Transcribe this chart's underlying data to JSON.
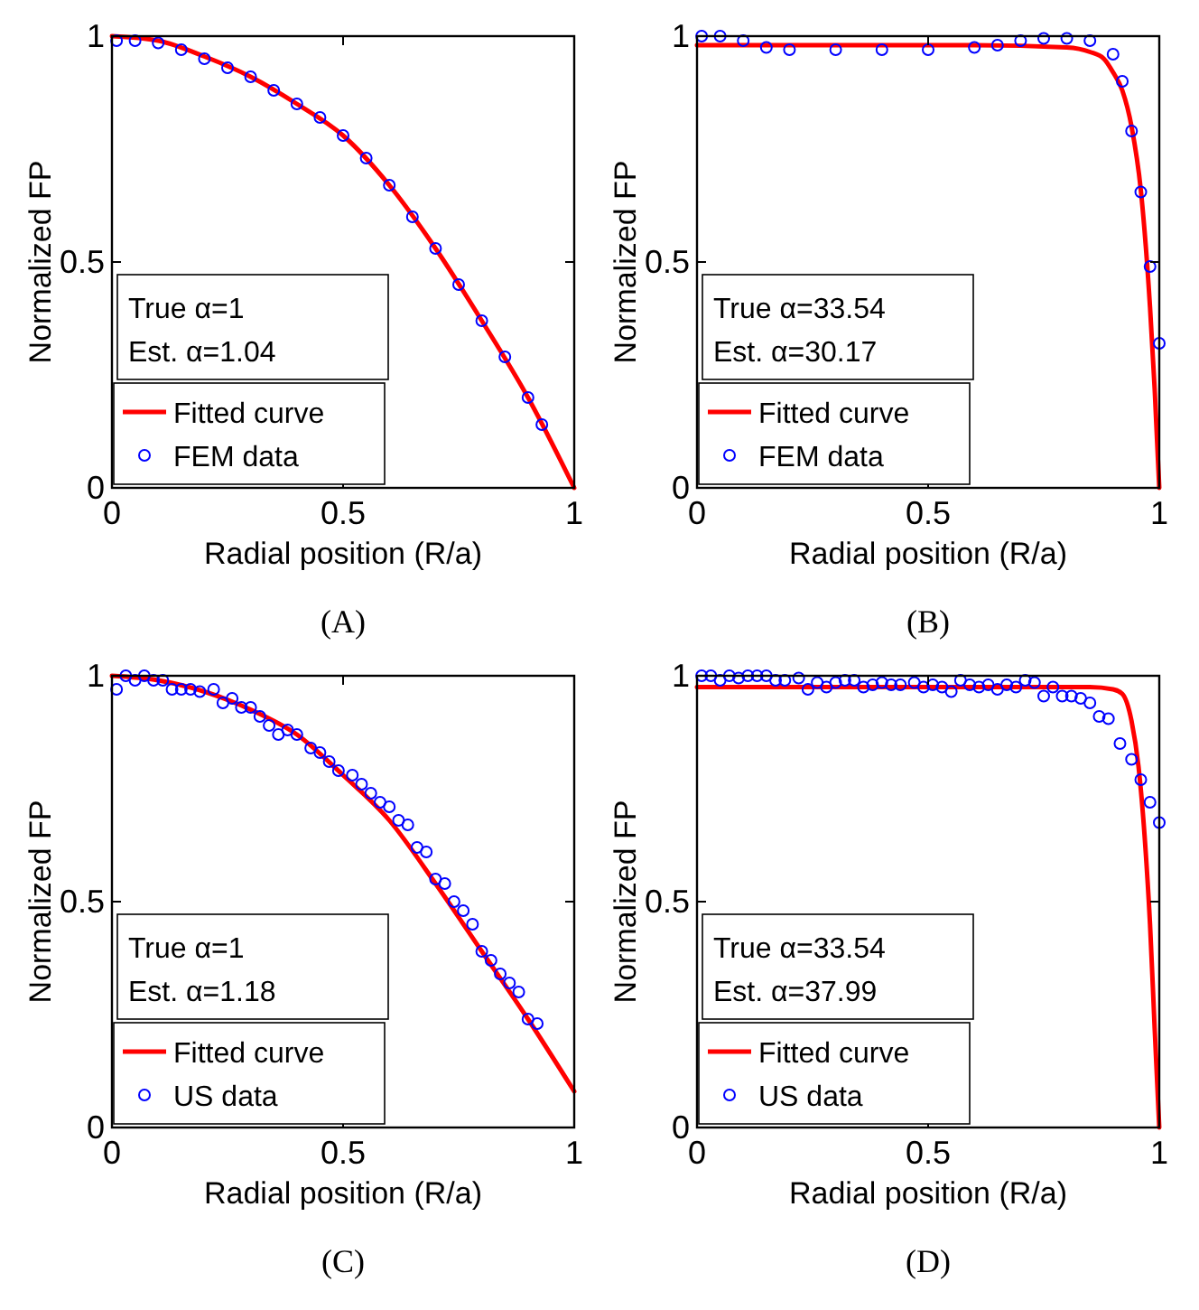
{
  "chart_data": [
    {
      "type": "line",
      "title": "(A)",
      "xlabel": "Radial position (R/a)",
      "ylabel": "Normalized FP",
      "xlim": [
        0,
        1
      ],
      "ylim": [
        0,
        1
      ],
      "xticks": [
        0,
        0.5,
        1
      ],
      "yticks": [
        0,
        0.5,
        1
      ],
      "legend": "bottom left",
      "annotations": [
        "True α=1",
        "Est. α=1.04"
      ],
      "series": [
        {
          "name": "Fitted curve",
          "type": "line",
          "color": "#ff0000",
          "x": [
            0,
            0.1,
            0.2,
            0.3,
            0.4,
            0.5,
            0.6,
            0.7,
            0.8,
            0.9,
            1
          ],
          "values": [
            1,
            0.99,
            0.955,
            0.91,
            0.85,
            0.78,
            0.67,
            0.53,
            0.37,
            0.2,
            0
          ]
        },
        {
          "name": "FEM data",
          "type": "scatter",
          "marker": "circle",
          "color": "#0000ff",
          "x": [
            0.01,
            0.05,
            0.1,
            0.15,
            0.2,
            0.25,
            0.3,
            0.35,
            0.4,
            0.45,
            0.5,
            0.55,
            0.6,
            0.65,
            0.7,
            0.75,
            0.8,
            0.85,
            0.9,
            0.93
          ],
          "values": [
            0.99,
            0.99,
            0.985,
            0.97,
            0.95,
            0.93,
            0.91,
            0.88,
            0.85,
            0.82,
            0.78,
            0.73,
            0.67,
            0.6,
            0.53,
            0.45,
            0.37,
            0.29,
            0.2,
            0.14
          ]
        }
      ]
    },
    {
      "type": "line",
      "title": "(B)",
      "xlabel": "Radial position (R/a)",
      "ylabel": "Normalized FP",
      "xlim": [
        0,
        1
      ],
      "ylim": [
        0,
        1
      ],
      "xticks": [
        0,
        0.5,
        1
      ],
      "yticks": [
        0,
        0.5,
        1
      ],
      "legend": "bottom left",
      "annotations": [
        "True α=33.54",
        "Est. α=30.17"
      ],
      "series": [
        {
          "name": "Fitted curve",
          "type": "line",
          "color": "#ff0000",
          "x": [
            0,
            0.2,
            0.4,
            0.6,
            0.8,
            0.85,
            0.88,
            0.9,
            0.92,
            0.94,
            0.96,
            0.98,
            0.99,
            1
          ],
          "values": [
            0.98,
            0.98,
            0.98,
            0.98,
            0.975,
            0.965,
            0.95,
            0.92,
            0.88,
            0.8,
            0.66,
            0.4,
            0.22,
            0
          ]
        },
        {
          "name": "FEM data",
          "type": "scatter",
          "marker": "circle",
          "color": "#0000ff",
          "x": [
            0.01,
            0.05,
            0.1,
            0.15,
            0.2,
            0.3,
            0.4,
            0.5,
            0.6,
            0.65,
            0.7,
            0.75,
            0.8,
            0.85,
            0.9,
            0.92,
            0.94,
            0.96,
            0.98,
            1
          ],
          "values": [
            1,
            1,
            0.99,
            0.975,
            0.97,
            0.97,
            0.97,
            0.97,
            0.975,
            0.98,
            0.99,
            0.995,
            0.995,
            0.99,
            0.96,
            0.9,
            0.79,
            0.655,
            0.49,
            0.32
          ]
        }
      ]
    },
    {
      "type": "line",
      "title": "(C)",
      "xlabel": "Radial position (R/a)",
      "ylabel": "Normalized FP",
      "xlim": [
        0,
        1
      ],
      "ylim": [
        0,
        1
      ],
      "xticks": [
        0,
        0.5,
        1
      ],
      "yticks": [
        0,
        0.5,
        1
      ],
      "legend": "bottom left",
      "annotations": [
        "True α=1",
        "Est. α=1.18"
      ],
      "series": [
        {
          "name": "Fitted curve",
          "type": "line",
          "color": "#ff0000",
          "x": [
            0,
            0.1,
            0.2,
            0.3,
            0.4,
            0.5,
            0.6,
            0.7,
            0.8,
            0.9,
            1
          ],
          "values": [
            1,
            0.99,
            0.965,
            0.925,
            0.87,
            0.78,
            0.68,
            0.54,
            0.39,
            0.24,
            0.08
          ]
        },
        {
          "name": "US data",
          "type": "scatter",
          "marker": "circle",
          "color": "#0000ff",
          "x": [
            0.01,
            0.03,
            0.05,
            0.07,
            0.09,
            0.11,
            0.13,
            0.15,
            0.17,
            0.19,
            0.22,
            0.24,
            0.26,
            0.28,
            0.3,
            0.32,
            0.34,
            0.36,
            0.38,
            0.4,
            0.43,
            0.45,
            0.47,
            0.49,
            0.52,
            0.54,
            0.56,
            0.58,
            0.6,
            0.62,
            0.64,
            0.66,
            0.68,
            0.7,
            0.72,
            0.74,
            0.76,
            0.78,
            0.8,
            0.82,
            0.84,
            0.86,
            0.88,
            0.9,
            0.92
          ],
          "values": [
            0.97,
            1,
            0.99,
            1,
            0.99,
            0.99,
            0.97,
            0.97,
            0.97,
            0.965,
            0.97,
            0.94,
            0.95,
            0.93,
            0.93,
            0.91,
            0.89,
            0.87,
            0.88,
            0.87,
            0.84,
            0.83,
            0.81,
            0.79,
            0.78,
            0.76,
            0.74,
            0.72,
            0.71,
            0.68,
            0.67,
            0.62,
            0.61,
            0.55,
            0.54,
            0.5,
            0.48,
            0.45,
            0.39,
            0.37,
            0.34,
            0.32,
            0.3,
            0.24,
            0.23
          ]
        }
      ]
    },
    {
      "type": "line",
      "title": "(D)",
      "xlabel": "Radial position (R/a)",
      "ylabel": "Normalized FP",
      "xlim": [
        0,
        1
      ],
      "ylim": [
        0,
        1
      ],
      "xticks": [
        0,
        0.5,
        1
      ],
      "yticks": [
        0,
        0.5,
        1
      ],
      "legend": "bottom left",
      "annotations": [
        "True α=33.54",
        "Est. α=37.99"
      ],
      "series": [
        {
          "name": "Fitted curve",
          "type": "line",
          "color": "#ff0000",
          "x": [
            0,
            0.2,
            0.4,
            0.6,
            0.8,
            0.85,
            0.9,
            0.92,
            0.94,
            0.955,
            0.97,
            0.98,
            0.99,
            1
          ],
          "values": [
            0.975,
            0.975,
            0.975,
            0.975,
            0.975,
            0.975,
            0.97,
            0.96,
            0.9,
            0.8,
            0.62,
            0.45,
            0.22,
            0
          ]
        },
        {
          "name": "US data",
          "type": "scatter",
          "marker": "circle",
          "color": "#0000ff",
          "x": [
            0.01,
            0.03,
            0.05,
            0.07,
            0.09,
            0.11,
            0.13,
            0.15,
            0.17,
            0.19,
            0.22,
            0.24,
            0.26,
            0.28,
            0.3,
            0.32,
            0.34,
            0.36,
            0.38,
            0.4,
            0.42,
            0.44,
            0.47,
            0.49,
            0.51,
            0.53,
            0.55,
            0.57,
            0.59,
            0.61,
            0.63,
            0.65,
            0.67,
            0.69,
            0.71,
            0.73,
            0.75,
            0.77,
            0.79,
            0.81,
            0.83,
            0.85,
            0.87,
            0.89,
            0.915,
            0.94,
            0.96,
            0.98,
            1
          ],
          "values": [
            1,
            1,
            0.99,
            1,
            0.995,
            1,
            1,
            1,
            0.99,
            0.99,
            0.995,
            0.97,
            0.985,
            0.975,
            0.985,
            0.99,
            0.99,
            0.975,
            0.98,
            0.985,
            0.98,
            0.98,
            0.985,
            0.975,
            0.98,
            0.975,
            0.965,
            0.99,
            0.98,
            0.975,
            0.98,
            0.97,
            0.98,
            0.975,
            0.99,
            0.985,
            0.955,
            0.975,
            0.955,
            0.955,
            0.95,
            0.94,
            0.91,
            0.905,
            0.85,
            0.815,
            0.77,
            0.72,
            0.675
          ]
        }
      ]
    }
  ]
}
